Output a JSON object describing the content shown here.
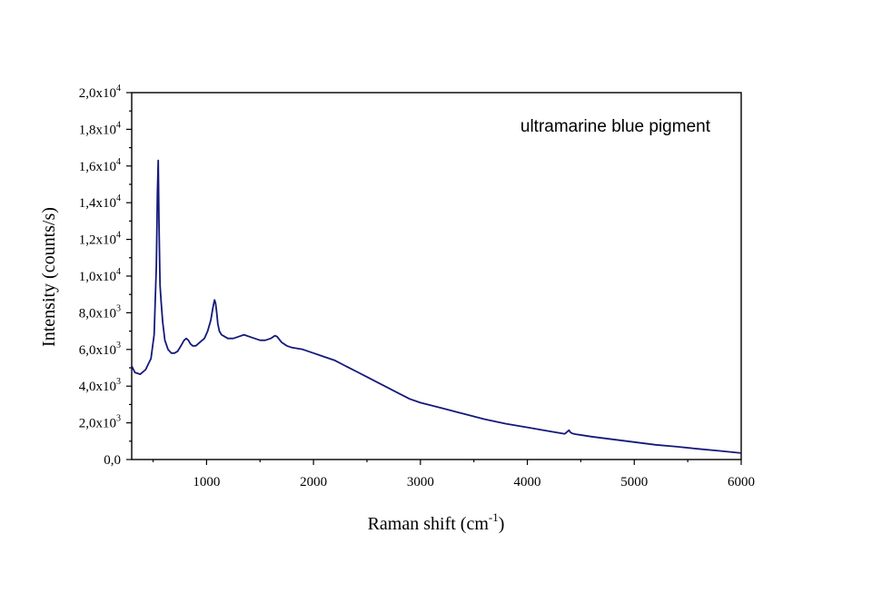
{
  "chart_data": {
    "type": "line",
    "annotation": "ultramarine blue pigment",
    "xlabel": "Raman shift (cm",
    "xlabel_sup": "-1",
    "xlabel_end": ")",
    "ylabel": "Intensity (counts/s)",
    "xlim": [
      300,
      6000
    ],
    "ylim": [
      0,
      20000
    ],
    "grid": false,
    "x_ticks": [
      1000,
      2000,
      3000,
      4000,
      5000,
      6000
    ],
    "x_tick_labels": [
      "1000",
      "2000",
      "3000",
      "4000",
      "5000",
      "6000"
    ],
    "y_ticks": [
      {
        "value": 0,
        "label": "0,0",
        "exp": ""
      },
      {
        "value": 2000,
        "label": "2,0x10",
        "exp": "3"
      },
      {
        "value": 4000,
        "label": "4,0x10",
        "exp": "3"
      },
      {
        "value": 6000,
        "label": "6,0x10",
        "exp": "3"
      },
      {
        "value": 8000,
        "label": "8,0x10",
        "exp": "3"
      },
      {
        "value": 10000,
        "label": "1,0x10",
        "exp": "4"
      },
      {
        "value": 12000,
        "label": "1,2x10",
        "exp": "4"
      },
      {
        "value": 14000,
        "label": "1,4x10",
        "exp": "4"
      },
      {
        "value": 16000,
        "label": "1,6x10",
        "exp": "4"
      },
      {
        "value": 18000,
        "label": "1,8x10",
        "exp": "4"
      },
      {
        "value": 20000,
        "label": "2,0x10",
        "exp": "4"
      }
    ],
    "series": [
      {
        "color": "#14197a",
        "x": [
          300,
          330,
          380,
          430,
          480,
          510,
          530,
          540,
          548,
          555,
          565,
          575,
          590,
          610,
          640,
          670,
          700,
          730,
          760,
          790,
          810,
          830,
          850,
          870,
          900,
          940,
          980,
          1010,
          1040,
          1060,
          1075,
          1085,
          1095,
          1105,
          1120,
          1140,
          1170,
          1200,
          1250,
          1300,
          1350,
          1400,
          1450,
          1500,
          1550,
          1600,
          1640,
          1660,
          1700,
          1750,
          1800,
          1900,
          2000,
          2100,
          2200,
          2300,
          2400,
          2500,
          2600,
          2700,
          2800,
          2900,
          3000,
          3200,
          3400,
          3600,
          3800,
          4000,
          4200,
          4350,
          4380,
          4390,
          4400,
          4420,
          4450,
          4600,
          4800,
          5000,
          5200,
          5400,
          5600,
          5800,
          6000
        ],
        "y": [
          5100,
          4750,
          4650,
          4900,
          5500,
          6800,
          10500,
          14500,
          16300,
          13000,
          9500,
          8600,
          7500,
          6500,
          6000,
          5800,
          5800,
          5900,
          6200,
          6500,
          6600,
          6500,
          6300,
          6200,
          6200,
          6400,
          6600,
          7000,
          7600,
          8300,
          8700,
          8500,
          8000,
          7400,
          7000,
          6800,
          6700,
          6600,
          6600,
          6700,
          6800,
          6700,
          6600,
          6500,
          6500,
          6600,
          6750,
          6700,
          6400,
          6200,
          6100,
          6000,
          5800,
          5600,
          5400,
          5100,
          4800,
          4500,
          4200,
          3900,
          3600,
          3300,
          3100,
          2800,
          2500,
          2200,
          1950,
          1750,
          1550,
          1400,
          1550,
          1600,
          1500,
          1420,
          1380,
          1250,
          1100,
          950,
          800,
          700,
          580,
          470,
          350
        ]
      }
    ]
  }
}
